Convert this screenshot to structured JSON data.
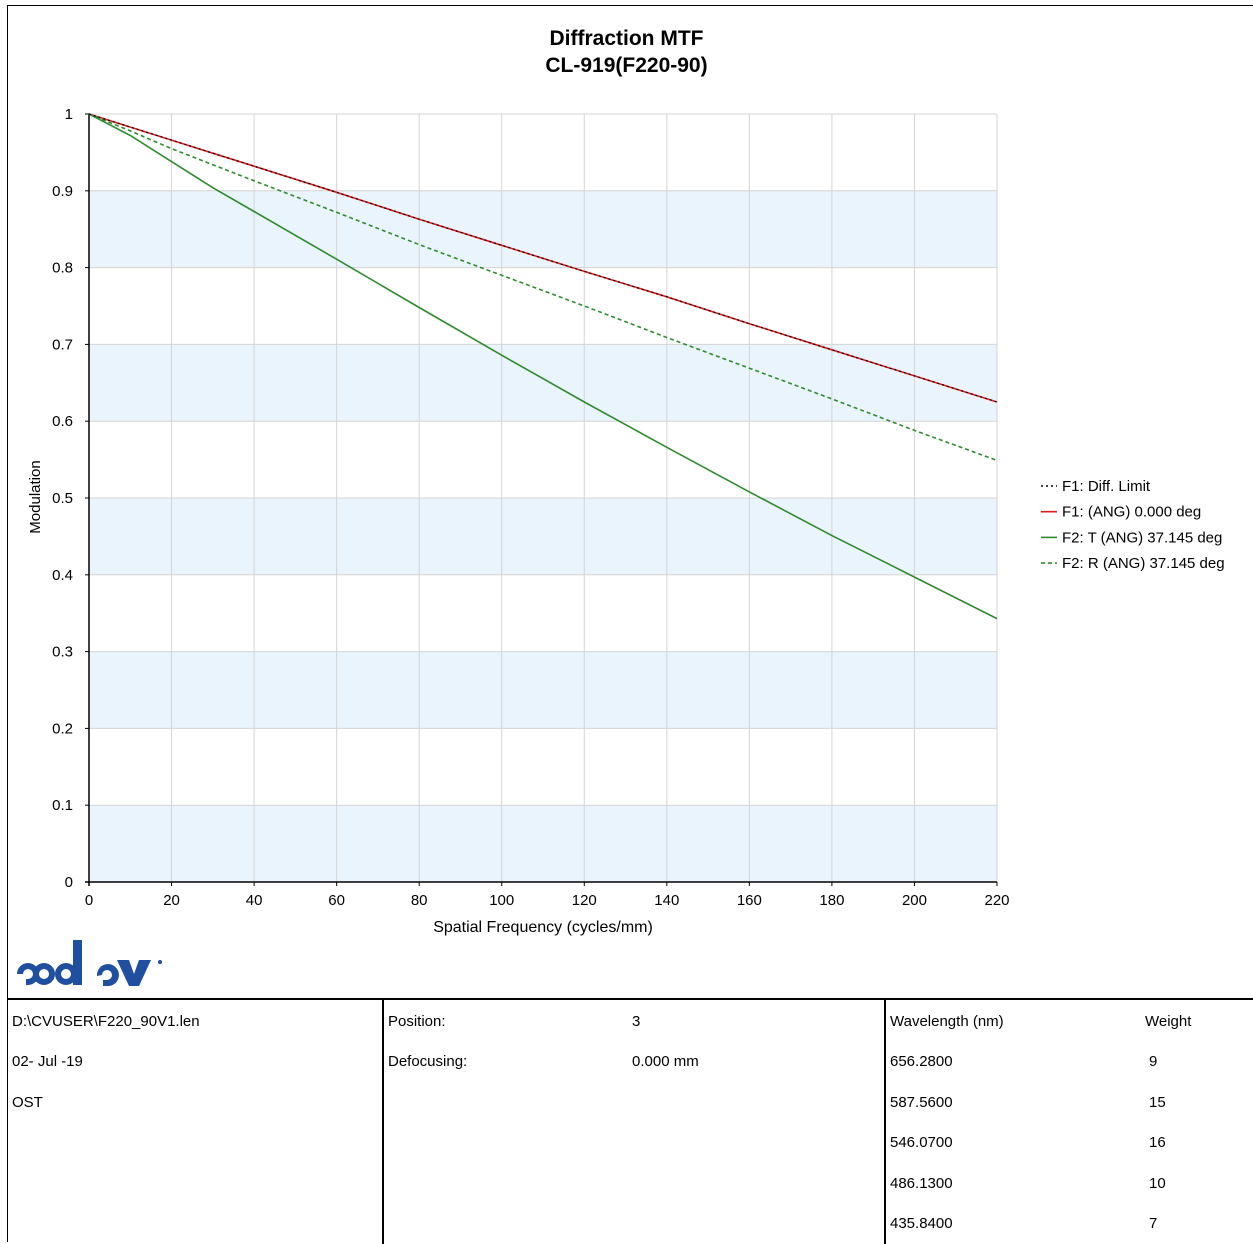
{
  "header": {
    "title": "Diffraction MTF",
    "subtitle": "CL-919(F220-90)"
  },
  "chart_data": {
    "type": "line",
    "title": "Diffraction MTF",
    "subtitle": "CL-919(F220-90)",
    "xlabel": "Spatial Frequency (cycles/mm)",
    "ylabel": "Modulation",
    "xlim": [
      0,
      220
    ],
    "ylim": [
      0,
      1
    ],
    "xticks": [
      0,
      20,
      40,
      60,
      80,
      100,
      120,
      140,
      160,
      180,
      200,
      220
    ],
    "yticks": [
      0,
      0.1,
      0.2,
      0.3,
      0.4,
      0.5,
      0.6,
      0.7,
      0.8,
      0.9,
      1
    ],
    "ytick_labels": [
      "0",
      "0.1",
      "0.2",
      "0.3",
      "0.4",
      "0.5",
      "0.6",
      "0.7",
      "0.8",
      "0.9",
      "1"
    ],
    "grid": true,
    "alternating_bands": true,
    "band_color": "#eaf4fc",
    "legend_position": "right",
    "x": [
      0,
      10,
      20,
      30,
      40,
      60,
      80,
      100,
      120,
      140,
      160,
      180,
      200,
      220
    ],
    "series": [
      {
        "name": "F1: Diff. Limit",
        "color": "#000000",
        "style": "dotted",
        "values": [
          1.0,
          0.983,
          0.966,
          0.949,
          0.932,
          0.898,
          0.863,
          0.829,
          0.795,
          0.762,
          0.727,
          0.693,
          0.659,
          0.625
        ]
      },
      {
        "name": "F1: (ANG) 0.000 deg",
        "color": "#e31a1c",
        "style": "solid",
        "values": [
          1.0,
          0.983,
          0.966,
          0.949,
          0.932,
          0.898,
          0.863,
          0.829,
          0.795,
          0.762,
          0.727,
          0.693,
          0.659,
          0.625
        ]
      },
      {
        "name": "F2: T (ANG) 37.145 deg",
        "color": "#2e8b2e",
        "style": "solid",
        "values": [
          1.0,
          0.972,
          0.938,
          0.904,
          0.873,
          0.811,
          0.748,
          0.686,
          0.625,
          0.566,
          0.508,
          0.451,
          0.397,
          0.343
        ]
      },
      {
        "name": "F2: R (ANG) 37.145 deg",
        "color": "#2e8b2e",
        "style": "dashed",
        "values": [
          1.0,
          0.978,
          0.955,
          0.934,
          0.913,
          0.872,
          0.83,
          0.79,
          0.75,
          0.709,
          0.669,
          0.629,
          0.588,
          0.549
        ]
      }
    ]
  },
  "logo": {
    "text": "code V"
  },
  "info": {
    "file": "D:\\CVUSER\\F220_90V1.len",
    "date": "02- Jul -19",
    "note": "OST",
    "position_label": "Position:",
    "position_value": "3",
    "defocus_label": "Defocusing:",
    "defocus_value": "0.000 mm",
    "wavelength_header": "Wavelength (nm)",
    "weight_header": "Weight",
    "wavelengths": [
      {
        "wavelength": "656.2800",
        "weight": "9"
      },
      {
        "wavelength": "587.5600",
        "weight": "15"
      },
      {
        "wavelength": "546.0700",
        "weight": "16"
      },
      {
        "wavelength": "486.1300",
        "weight": "10"
      },
      {
        "wavelength": "435.8400",
        "weight": "7"
      }
    ]
  }
}
